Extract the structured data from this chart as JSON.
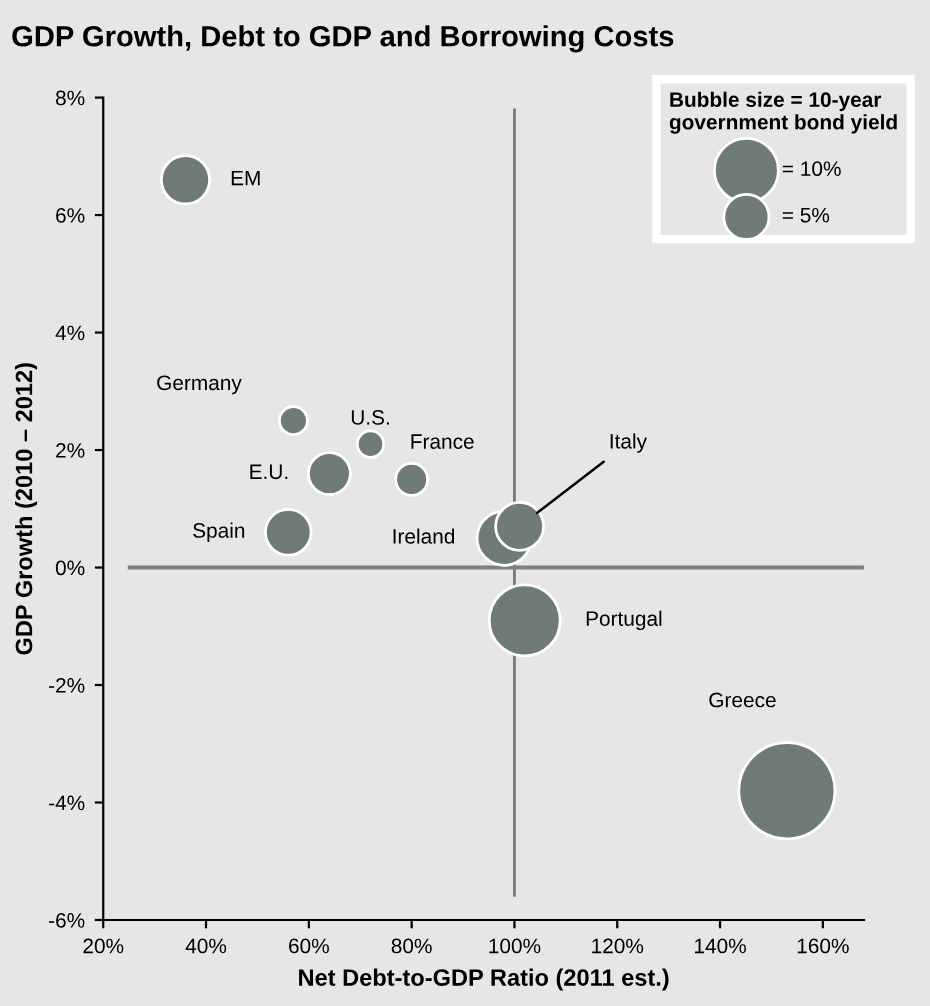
{
  "chart_data": {
    "type": "bubble",
    "title": "GDP Growth, Debt to GDP and Borrowing Costs",
    "xlabel": "Net Debt-to-GDP Ratio (2011 est.)",
    "ylabel": "GDP Growth (2010 – 2012)",
    "legend_title": "Bubble size = 10-year\ngovernment bond yield",
    "legend": "top right",
    "size_legend": [
      {
        "value": 10,
        "label": "= 10%"
      },
      {
        "value": 5,
        "label": "= 5%"
      }
    ],
    "xlim": [
      20,
      168
    ],
    "ylim": [
      -6,
      8
    ],
    "xticks": [
      {
        "value": 20,
        "label": "20%"
      },
      {
        "value": 40,
        "label": "40%"
      },
      {
        "value": 60,
        "label": "60%"
      },
      {
        "value": 80,
        "label": "80%"
      },
      {
        "value": 100,
        "label": "100%"
      },
      {
        "value": 120,
        "label": "120%"
      },
      {
        "value": 140,
        "label": "140%"
      },
      {
        "value": 160,
        "label": "160%"
      }
    ],
    "yticks": [
      {
        "value": -6,
        "label": "-6%"
      },
      {
        "value": -4,
        "label": "-4%"
      },
      {
        "value": -2,
        "label": "-2%"
      },
      {
        "value": 0,
        "label": "0%"
      },
      {
        "value": 2,
        "label": "2%"
      },
      {
        "value": 4,
        "label": "4%"
      },
      {
        "value": 6,
        "label": "6%"
      },
      {
        "value": 8,
        "label": "8%"
      }
    ],
    "grid": false,
    "ref_lines": [
      {
        "axis": "x",
        "value": 100,
        "color": "#6f7b77"
      },
      {
        "axis": "y",
        "value": 0,
        "color": "#7f7f7f"
      }
    ],
    "series": [
      {
        "name": "EM",
        "color": "#6f7b77",
        "x": [
          36
        ],
        "values": [
          6.6
        ],
        "sizes": [
          5.7
        ]
      },
      {
        "name": "Germany",
        "color": "#6f7b77",
        "x": [
          57
        ],
        "values": [
          2.5
        ],
        "sizes": [
          1.9
        ]
      },
      {
        "name": "U.S.",
        "color": "#6f7b77",
        "x": [
          72
        ],
        "values": [
          2.1
        ],
        "sizes": [
          1.7
        ]
      },
      {
        "name": "France",
        "color": "#6f7b77",
        "x": [
          80
        ],
        "values": [
          1.5
        ],
        "sizes": [
          2.5
        ]
      },
      {
        "name": "E.U.",
        "color": "#6f7b77",
        "x": [
          64
        ],
        "values": [
          1.6
        ],
        "sizes": [
          4.3
        ]
      },
      {
        "name": "Spain",
        "color": "#6f7b77",
        "x": [
          56
        ],
        "values": [
          0.6
        ],
        "sizes": [
          5.1
        ]
      },
      {
        "name": "Ireland",
        "color": "#6f7b77",
        "x": [
          98
        ],
        "values": [
          0.5
        ],
        "sizes": [
          7.2
        ]
      },
      {
        "name": "Italy",
        "color": "#6f7b77",
        "x": [
          101
        ],
        "values": [
          0.7
        ],
        "sizes": [
          5.6
        ]
      },
      {
        "name": "Portugal",
        "color": "#6f7b77",
        "x": [
          102
        ],
        "values": [
          -0.9
        ],
        "sizes": [
          12.3
        ]
      },
      {
        "name": "Greece",
        "color": "#6f7b77",
        "x": [
          153
        ],
        "values": [
          -3.8
        ],
        "sizes": [
          22.6
        ]
      }
    ]
  }
}
